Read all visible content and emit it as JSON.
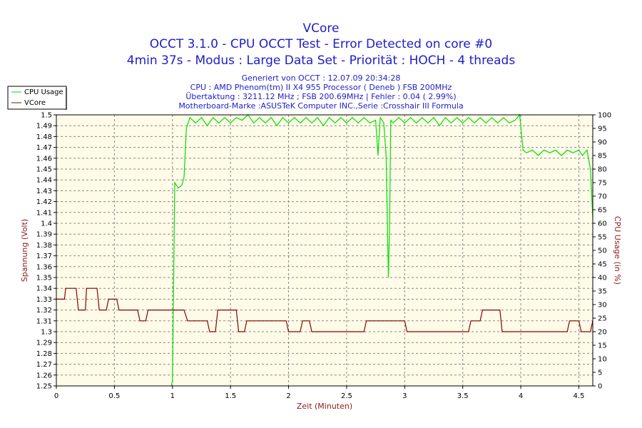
{
  "chart_data": {
    "type": "line",
    "title": "VCore",
    "subtitle1": "OCCT 3.1.0 - CPU OCCT Test - Error Detected on core #0",
    "subtitle2": "4min 37s - Modus : Large Data Set - Priorität : HOCH - 4 threads",
    "info": [
      "Generiert von OCCT : 12.07.09 20:34:28",
      "CPU : AMD Phenom(tm) II X4 955 Processor ( Deneb ) FSB 200MHz",
      "Übertaktung : 3211.12 MHz ; FSB 200.69MHz | Fehler : 0.04 ( 2.99%)",
      "Motherboard-Marke :ASUSTeK Computer INC.,Serie :Crosshair III Formula"
    ],
    "xlabel": "Zeit (Minuten)",
    "ylabel_left": "Spannung (Volt)",
    "ylabel_right": "CPU Usage (in %)",
    "xlim": [
      0,
      4.62
    ],
    "ylim_left": [
      1.25,
      1.5
    ],
    "ylim_right": [
      0,
      100
    ],
    "x_ticks": [
      "0",
      "0.5",
      "1",
      "1.5",
      "2",
      "2.5",
      "3",
      "3.5",
      "4",
      "4.5"
    ],
    "y_left_ticks": [
      "1.25",
      "1.26",
      "1.27",
      "1.28",
      "1.29",
      "1.3",
      "1.31",
      "1.32",
      "1.33",
      "1.34",
      "1.35",
      "1.36",
      "1.37",
      "1.38",
      "1.39",
      "1.4",
      "1.41",
      "1.42",
      "1.43",
      "1.44",
      "1.45",
      "1.46",
      "1.47",
      "1.48",
      "1.49",
      "1.5"
    ],
    "y_right_ticks": [
      "0",
      "5",
      "10",
      "15",
      "20",
      "25",
      "30",
      "35",
      "40",
      "45",
      "50",
      "55",
      "60",
      "65",
      "70",
      "75",
      "80",
      "85",
      "90",
      "95",
      "100"
    ],
    "grid": true,
    "legend_position": "top-left",
    "colors": {
      "cpu_usage": "#00e000",
      "vcore": "#8b0000",
      "plot_bg": "#fffbe9",
      "title": "#1d1dc8",
      "axis_label": "#8b1a1a"
    },
    "series": [
      {
        "name": "CPU Usage",
        "axis": "right",
        "points": [
          [
            0.99,
            0
          ],
          [
            1.0,
            2
          ],
          [
            1.02,
            75
          ],
          [
            1.05,
            73
          ],
          [
            1.08,
            74
          ],
          [
            1.1,
            77
          ],
          [
            1.12,
            95
          ],
          [
            1.15,
            99
          ],
          [
            1.2,
            97
          ],
          [
            1.25,
            99
          ],
          [
            1.3,
            96
          ],
          [
            1.35,
            99
          ],
          [
            1.4,
            97
          ],
          [
            1.45,
            99
          ],
          [
            1.5,
            97
          ],
          [
            1.55,
            99
          ],
          [
            1.6,
            98
          ],
          [
            1.65,
            100
          ],
          [
            1.7,
            97
          ],
          [
            1.75,
            99
          ],
          [
            1.8,
            97
          ],
          [
            1.85,
            99
          ],
          [
            1.9,
            96
          ],
          [
            1.95,
            99
          ],
          [
            2.0,
            97
          ],
          [
            2.05,
            99
          ],
          [
            2.1,
            97
          ],
          [
            2.15,
            99
          ],
          [
            2.2,
            97
          ],
          [
            2.25,
            99
          ],
          [
            2.3,
            96
          ],
          [
            2.35,
            99
          ],
          [
            2.4,
            97
          ],
          [
            2.45,
            99
          ],
          [
            2.5,
            97
          ],
          [
            2.55,
            99
          ],
          [
            2.6,
            97
          ],
          [
            2.65,
            99
          ],
          [
            2.7,
            97
          ],
          [
            2.75,
            98
          ],
          [
            2.77,
            85
          ],
          [
            2.79,
            99
          ],
          [
            2.82,
            97
          ],
          [
            2.84,
            85
          ],
          [
            2.86,
            40
          ],
          [
            2.87,
            60
          ],
          [
            2.88,
            98
          ],
          [
            2.9,
            97
          ],
          [
            2.95,
            99
          ],
          [
            3.0,
            97
          ],
          [
            3.05,
            99
          ],
          [
            3.1,
            97
          ],
          [
            3.15,
            99
          ],
          [
            3.2,
            97
          ],
          [
            3.25,
            99
          ],
          [
            3.3,
            96
          ],
          [
            3.35,
            99
          ],
          [
            3.4,
            97
          ],
          [
            3.45,
            99
          ],
          [
            3.5,
            97
          ],
          [
            3.55,
            99
          ],
          [
            3.6,
            97
          ],
          [
            3.65,
            99
          ],
          [
            3.7,
            97
          ],
          [
            3.75,
            99
          ],
          [
            3.8,
            97
          ],
          [
            3.85,
            99
          ],
          [
            3.9,
            97
          ],
          [
            3.95,
            98
          ],
          [
            3.99,
            100
          ],
          [
            4.02,
            87
          ],
          [
            4.05,
            86
          ],
          [
            4.1,
            87
          ],
          [
            4.15,
            85
          ],
          [
            4.2,
            87
          ],
          [
            4.25,
            86
          ],
          [
            4.3,
            87
          ],
          [
            4.35,
            85
          ],
          [
            4.4,
            87
          ],
          [
            4.45,
            86
          ],
          [
            4.5,
            87
          ],
          [
            4.53,
            85
          ],
          [
            4.57,
            87
          ],
          [
            4.6,
            80
          ],
          [
            4.62,
            62
          ]
        ]
      },
      {
        "name": "VCore",
        "axis": "left",
        "points": [
          [
            0.0,
            1.33
          ],
          [
            0.07,
            1.33
          ],
          [
            0.08,
            1.34
          ],
          [
            0.17,
            1.34
          ],
          [
            0.19,
            1.32
          ],
          [
            0.25,
            1.32
          ],
          [
            0.26,
            1.34
          ],
          [
            0.35,
            1.34
          ],
          [
            0.37,
            1.32
          ],
          [
            0.43,
            1.32
          ],
          [
            0.45,
            1.33
          ],
          [
            0.52,
            1.33
          ],
          [
            0.54,
            1.32
          ],
          [
            0.7,
            1.32
          ],
          [
            0.72,
            1.31
          ],
          [
            0.77,
            1.31
          ],
          [
            0.79,
            1.32
          ],
          [
            1.1,
            1.32
          ],
          [
            1.13,
            1.31
          ],
          [
            1.3,
            1.31
          ],
          [
            1.32,
            1.3
          ],
          [
            1.37,
            1.3
          ],
          [
            1.39,
            1.32
          ],
          [
            1.55,
            1.32
          ],
          [
            1.57,
            1.3
          ],
          [
            1.62,
            1.3
          ],
          [
            1.64,
            1.31
          ],
          [
            1.98,
            1.31
          ],
          [
            2.0,
            1.3
          ],
          [
            2.1,
            1.3
          ],
          [
            2.12,
            1.31
          ],
          [
            2.18,
            1.31
          ],
          [
            2.2,
            1.3
          ],
          [
            2.65,
            1.3
          ],
          [
            2.67,
            1.31
          ],
          [
            3.0,
            1.31
          ],
          [
            3.02,
            1.3
          ],
          [
            3.55,
            1.3
          ],
          [
            3.57,
            1.31
          ],
          [
            3.65,
            1.31
          ],
          [
            3.67,
            1.32
          ],
          [
            3.82,
            1.32
          ],
          [
            3.84,
            1.3
          ],
          [
            4.4,
            1.3
          ],
          [
            4.42,
            1.31
          ],
          [
            4.5,
            1.31
          ],
          [
            4.52,
            1.3
          ],
          [
            4.6,
            1.3
          ],
          [
            4.62,
            1.31
          ]
        ]
      }
    ]
  }
}
